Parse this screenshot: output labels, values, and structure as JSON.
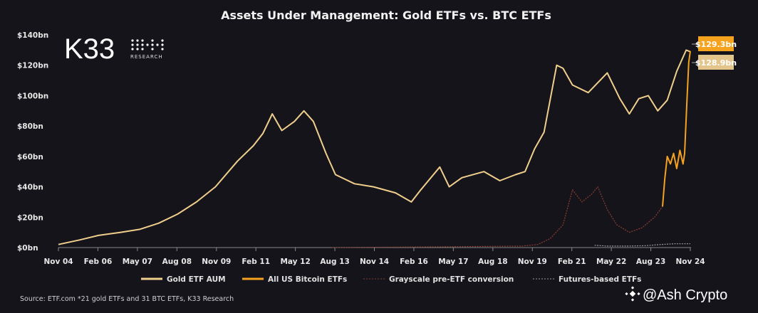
{
  "chart_data": {
    "type": "line",
    "title": "Assets Under Management: Gold ETFs vs. BTC ETFs",
    "xlabel": "",
    "ylabel": "",
    "x_ticks": [
      "Nov 04",
      "Feb 06",
      "May 07",
      "Aug 08",
      "Nov 09",
      "Feb 11",
      "May 12",
      "Aug 13",
      "Nov 14",
      "Feb 16",
      "May 17",
      "Aug 18",
      "Nov 19",
      "Feb 21",
      "May 22",
      "Aug 23",
      "Nov 24"
    ],
    "y_ticks": [
      "$0bn",
      "$20bn",
      "$40bn",
      "$60bn",
      "$80bn",
      "$100bn",
      "$120bn",
      "$140bn"
    ],
    "xlim": [
      2004.83,
      2024.83
    ],
    "ylim": [
      0,
      140
    ],
    "grid": false,
    "legend_position": "bottom",
    "series": [
      {
        "name": "Gold ETF AUM",
        "color": "#f0cf8c",
        "style": "solid",
        "x": [
          2004.83,
          2005.5,
          2006.1,
          2006.8,
          2007.4,
          2008.0,
          2008.6,
          2009.2,
          2009.8,
          2010.5,
          2011.0,
          2011.3,
          2011.6,
          2011.9,
          2012.3,
          2012.6,
          2012.9,
          2013.3,
          2013.6,
          2014.2,
          2014.8,
          2015.5,
          2016.0,
          2016.3,
          2016.9,
          2017.2,
          2017.6,
          2018.3,
          2018.8,
          2019.3,
          2019.6,
          2019.9,
          2020.2,
          2020.6,
          2020.8,
          2021.1,
          2021.6,
          2022.2,
          2022.6,
          2022.9,
          2023.2,
          2023.5,
          2023.8,
          2024.1,
          2024.4,
          2024.7,
          2024.83
        ],
        "y": [
          2,
          5,
          8,
          10,
          12,
          16,
          22,
          30,
          40,
          57,
          67,
          75,
          88,
          77,
          83,
          90,
          83,
          62,
          48,
          42,
          40,
          36,
          30,
          38,
          53,
          40,
          46,
          50,
          44,
          48,
          50,
          65,
          76,
          120,
          118,
          107,
          102,
          115,
          98,
          88,
          98,
          100,
          90,
          97,
          116,
          130,
          128.9
        ]
      },
      {
        "name": "All US Bitcoin ETFs",
        "color": "#f5a21e",
        "style": "solid",
        "x": [
          2023.95,
          2024.02,
          2024.1,
          2024.2,
          2024.3,
          2024.4,
          2024.5,
          2024.6,
          2024.65,
          2024.72,
          2024.78,
          2024.83
        ],
        "y": [
          27,
          45,
          60,
          55,
          62,
          52,
          64,
          55,
          62,
          95,
          122,
          129.3
        ]
      },
      {
        "name": "Grayscale pre-ETF conversion",
        "color": "#8a3e30",
        "style": "dotted",
        "x": [
          2013.5,
          2017.0,
          2019.5,
          2020.0,
          2020.4,
          2020.8,
          2021.1,
          2021.4,
          2021.7,
          2021.9,
          2022.2,
          2022.5,
          2022.9,
          2023.3,
          2023.7,
          2023.95
        ],
        "y": [
          0,
          0.5,
          1,
          2,
          6,
          15,
          38,
          30,
          35,
          40,
          25,
          15,
          10,
          13,
          20,
          27
        ]
      },
      {
        "name": "Futures-based ETFs",
        "color": "#9a9a9a",
        "style": "dotted",
        "x": [
          2021.8,
          2022.2,
          2022.8,
          2023.4,
          2023.9,
          2024.3,
          2024.83
        ],
        "y": [
          1.5,
          1,
          1,
          1.2,
          2,
          2.5,
          2.5
        ]
      }
    ],
    "annotations": [
      "$129.3bn",
      "$128.9bn"
    ],
    "annotation_colors": [
      "#f5a21e",
      "#e9c98c"
    ],
    "source": "Source: ETF.com *21 gold ETFs and 31 BTC ETFs, K33 Research"
  },
  "logo": {
    "name": "K33",
    "sub": "RESEARCH"
  },
  "watermark": "@Ash  Crypto"
}
